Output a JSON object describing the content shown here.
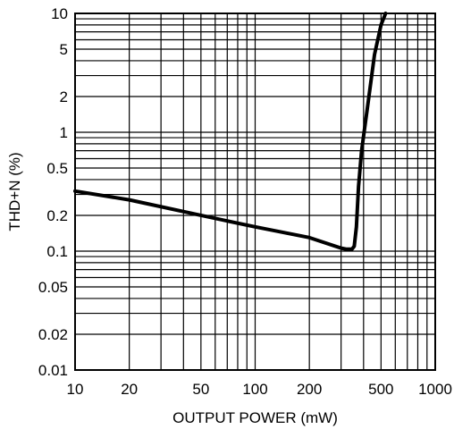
{
  "chart_data": {
    "type": "line",
    "title": "",
    "xlabel": "OUTPUT POWER (mW)",
    "ylabel": "THD+N (%)",
    "x_scale": "log",
    "y_scale": "log",
    "xlim": [
      10,
      1000
    ],
    "ylim": [
      0.01,
      10
    ],
    "grid": true,
    "legend": "none",
    "x_tick_labels": [
      "10",
      "20",
      "50",
      "100",
      "200",
      "500",
      "1000"
    ],
    "x_tick_values": [
      10,
      20,
      50,
      100,
      200,
      500,
      1000
    ],
    "y_tick_labels": [
      "10",
      "5",
      "2",
      "1",
      "0.5",
      "0.2",
      "0.1",
      "0.05",
      "0.02",
      "0.01"
    ],
    "y_tick_values": [
      10,
      5,
      2,
      1,
      0.5,
      0.2,
      0.1,
      0.05,
      0.02,
      0.01
    ],
    "series": [
      {
        "x": [
          10,
          20,
          50,
          100,
          200,
          300,
          320,
          345,
          355,
          365,
          375,
          390,
          420,
          460,
          500,
          530
        ],
        "y": [
          0.32,
          0.27,
          0.2,
          0.16,
          0.13,
          0.106,
          0.104,
          0.104,
          0.11,
          0.16,
          0.35,
          0.7,
          1.6,
          4.5,
          8,
          10
        ],
        "color": "#000000"
      }
    ]
  }
}
